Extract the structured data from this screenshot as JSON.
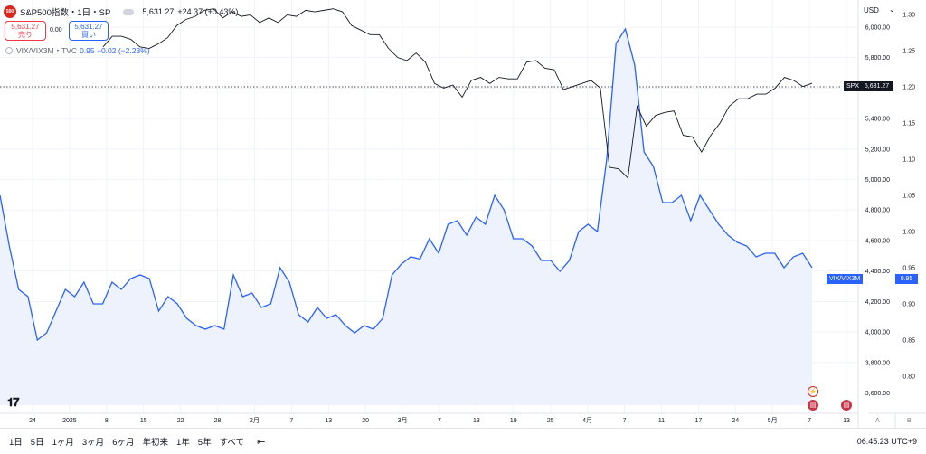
{
  "header": {
    "logo_text": "500",
    "symbol_title": "S&P500指数・1日・SP",
    "price": "5,631.27",
    "change": "+24.37 (+0.43%)"
  },
  "trade": {
    "sell_price": "5,631.27",
    "sell_label": "売り",
    "spread": "0.00",
    "buy_price": "5,631.27",
    "buy_label": "買い"
  },
  "compare": {
    "label": "VIX/VIX3M・TVC",
    "values": "0.95  −0.02 (−2.23%)"
  },
  "axis": {
    "currency": "USD",
    "caret": "⌄",
    "left_foot": "A",
    "right_foot": "B"
  },
  "tags": {
    "spx_label": "SPX",
    "spx_price": "5,631.27",
    "vix_label": "VIX/VIX3M",
    "vix_price": "0.95"
  },
  "toolbar": {
    "ranges": [
      "1日",
      "5日",
      "1ヶ月",
      "3ヶ月",
      "6ヶ月",
      "年初来",
      "1年",
      "5年",
      "すべて"
    ],
    "clock": "06:45:23 UTC+9"
  },
  "icons": {
    "goto": "calendar-goto-icon",
    "logo": "tradingview-logo"
  },
  "colors": {
    "spx": "#131722",
    "vix": "#2962ff",
    "vix_fill": "#eef2fd"
  },
  "chart_data": {
    "type": "line",
    "x_tick_labels": [
      "24",
      "2025",
      "8",
      "15",
      "22",
      "28",
      "2月",
      "7",
      "13",
      "20",
      "3月",
      "7",
      "13",
      "19",
      "25",
      "4月",
      "7",
      "11",
      "17",
      "24",
      "5月",
      "7",
      "13"
    ],
    "y_left": {
      "name": "SPX",
      "ticks": [
        "6,000.00",
        "5,800.00",
        "5,600.00",
        "5,400.00",
        "5,200.00",
        "5,000.00",
        "4,800.00",
        "4,600.00",
        "4,400.00",
        "4,200.00",
        "4,000.00",
        "3,800.00",
        "3,600.00"
      ],
      "range": [
        3520,
        6130
      ]
    },
    "y_right": {
      "name": "VIX/VIX3M",
      "ticks": [
        "1.30",
        "1.25",
        "1.20",
        "1.15",
        "1.10",
        "1.05",
        "1.00",
        "0.95",
        "0.90",
        "0.85",
        "0.80"
      ],
      "range": [
        0.76,
        1.31
      ]
    },
    "last_price_line": 5631.27,
    "series": [
      {
        "name": "S&P500指数",
        "axis": "left",
        "values": [
          5870,
          5940,
          5940,
          5920,
          5870,
          5860,
          5890,
          5930,
          6010,
          6050,
          6070,
          6110,
          6120,
          6060,
          6100,
          6070,
          6080,
          6030,
          6060,
          6030,
          6080,
          6070,
          6110,
          6100,
          6110,
          6120,
          6100,
          6010,
          5980,
          5950,
          5950,
          5860,
          5800,
          5780,
          5830,
          5770,
          5630,
          5600,
          5620,
          5540,
          5650,
          5670,
          5630,
          5670,
          5660,
          5660,
          5770,
          5780,
          5730,
          5720,
          5590,
          5610,
          5630,
          5650,
          5600,
          5080,
          5070,
          5010,
          5480,
          5350,
          5420,
          5440,
          5450,
          5290,
          5280,
          5180,
          5290,
          5370,
          5480,
          5530,
          5530,
          5560,
          5560,
          5600,
          5670,
          5650,
          5610,
          5631.27
        ]
      },
      {
        "name": "VIX/VIX3M",
        "axis": "right",
        "values": [
          1.05,
          0.98,
          0.92,
          0.91,
          0.85,
          0.86,
          0.89,
          0.92,
          0.91,
          0.93,
          0.9,
          0.9,
          0.93,
          0.92,
          0.935,
          0.94,
          0.935,
          0.89,
          0.91,
          0.9,
          0.88,
          0.87,
          0.865,
          0.87,
          0.865,
          0.94,
          0.91,
          0.915,
          0.895,
          0.9,
          0.95,
          0.93,
          0.885,
          0.875,
          0.895,
          0.88,
          0.885,
          0.87,
          0.86,
          0.87,
          0.865,
          0.88,
          0.94,
          0.955,
          0.965,
          0.962,
          0.99,
          0.97,
          1.01,
          1.015,
          0.995,
          1.02,
          1.01,
          1.05,
          1.03,
          0.99,
          0.99,
          0.98,
          0.96,
          0.96,
          0.945,
          0.96,
          1.0,
          1.01,
          1.0,
          1.1,
          1.26,
          1.28,
          1.23,
          1.11,
          1.09,
          1.04,
          1.04,
          1.05,
          1.015,
          1.05,
          1.03,
          1.01,
          0.995,
          0.985,
          0.98,
          0.965,
          0.97,
          0.97,
          0.95,
          0.965,
          0.97,
          0.95
        ]
      }
    ],
    "grid": true,
    "legend": "top-left"
  }
}
